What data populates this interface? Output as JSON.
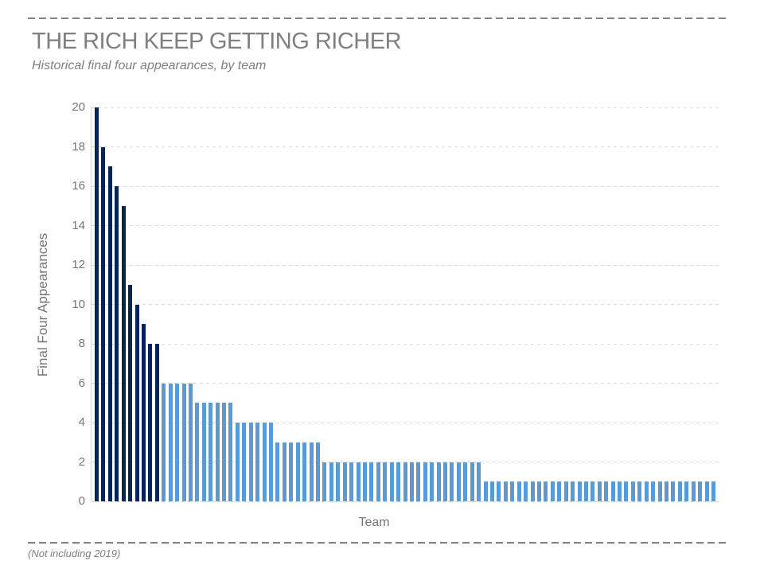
{
  "header": {
    "title": "THE RICH KEEP GETTING RICHER",
    "subtitle": "Historical final four appearances,  by team"
  },
  "footer": {
    "note": "(Not including 2019)"
  },
  "chart_data": {
    "type": "bar",
    "title": "THE RICH KEEP GETTING RICHER",
    "subtitle": "Historical final four appearances, by team",
    "xlabel": "Team",
    "ylabel": "Final Four Appearances",
    "ylim": [
      0,
      20
    ],
    "yticks": [
      0,
      2,
      4,
      6,
      8,
      10,
      12,
      14,
      16,
      18,
      20
    ],
    "grid": "horizontal-dashed",
    "legend": "none",
    "x_tick_labels": "none",
    "footnote": "(Not including 2019)",
    "values": [
      20,
      18,
      17,
      16,
      15,
      11,
      10,
      9,
      8,
      8,
      6,
      6,
      6,
      6,
      6,
      5,
      5,
      5,
      5,
      5,
      5,
      4,
      4,
      4,
      4,
      4,
      4,
      3,
      3,
      3,
      3,
      3,
      3,
      3,
      2,
      2,
      2,
      2,
      2,
      2,
      2,
      2,
      2,
      2,
      2,
      2,
      2,
      2,
      2,
      2,
      2,
      2,
      2,
      2,
      2,
      2,
      2,
      2,
      1,
      1,
      1,
      1,
      1,
      1,
      1,
      1,
      1,
      1,
      1,
      1,
      1,
      1,
      1,
      1,
      1,
      1,
      1,
      1,
      1,
      1,
      1,
      1,
      1,
      1,
      1,
      1,
      1,
      1,
      1,
      1,
      1,
      1,
      1
    ],
    "colors": {
      "dark_bar": "#05245a",
      "light_bar": "#5b9bd5",
      "dark_bar_rule": "values >= 8",
      "gridline": "#d9d9d9",
      "axis_text": "#757575",
      "title_text": "#7f7f7f"
    }
  }
}
